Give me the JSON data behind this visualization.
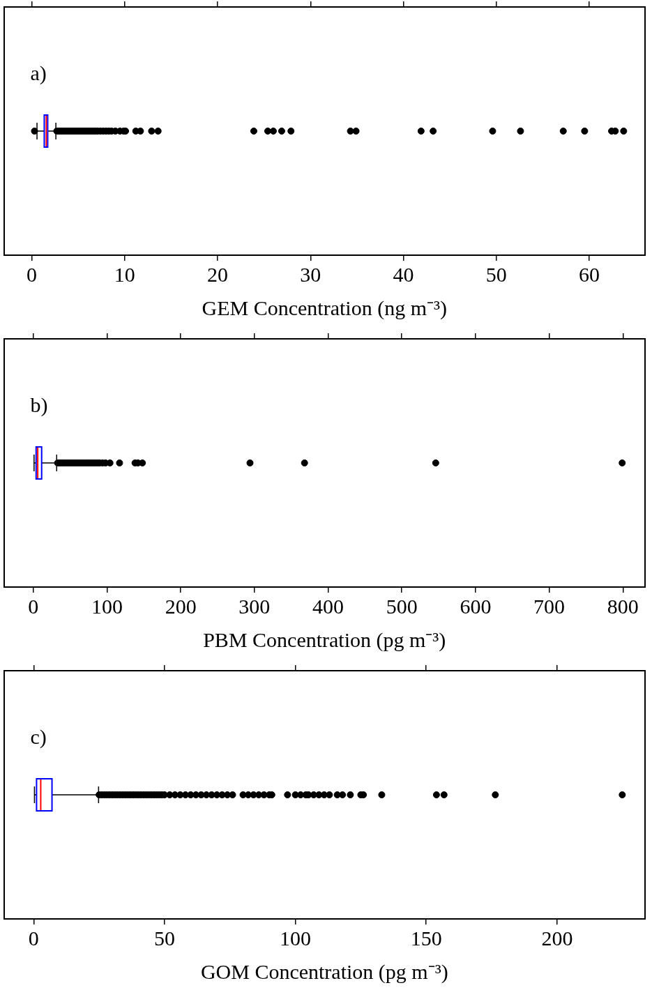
{
  "chart_data": [
    {
      "type": "box",
      "orientation": "horizontal",
      "xlabel": "GEM Concentration (ng m⁻³)",
      "categories": [
        null
      ],
      "xlim": [
        -3,
        66
      ],
      "xticks": [
        0,
        10,
        20,
        30,
        40,
        50,
        60
      ],
      "tick_labels": "x",
      "grid": false,
      "legend": false,
      "annotations": [
        "a)"
      ],
      "boxes": [
        {
          "low": 0.57,
          "q1": 1.35,
          "median": 1.57,
          "q3": 1.72,
          "high": 2.6,
          "outliers": [
            0.3,
            2.7,
            2.9,
            3.1,
            3.3,
            3.5,
            3.7,
            3.9,
            4.1,
            4.3,
            4.5,
            4.7,
            4.9,
            5.1,
            5.3,
            5.5,
            5.7,
            5.9,
            6.1,
            6.3,
            6.5,
            6.7,
            6.9,
            7.1,
            7.4,
            7.7,
            8.0,
            8.3,
            8.6,
            9.0,
            9.5,
            9.9,
            10.1,
            11.2,
            11.7,
            12.9,
            13.6,
            23.9,
            25.4,
            26.0,
            26.9,
            27.9,
            34.3,
            34.9,
            41.9,
            43.2,
            49.6,
            52.6,
            57.2,
            59.5,
            62.4,
            62.8,
            63.7
          ]
        }
      ]
    },
    {
      "type": "box",
      "orientation": "horizontal",
      "xlabel": "PBM Concentration (pg m⁻³)",
      "categories": [
        null
      ],
      "xlim": [
        -40,
        830
      ],
      "xticks": [
        0,
        100,
        200,
        300,
        400,
        500,
        600,
        700,
        800
      ],
      "tick_labels": "x",
      "grid": false,
      "legend": false,
      "annotations": [
        "b)"
      ],
      "boxes": [
        {
          "low": 1,
          "q1": 3.8,
          "median": 6,
          "q3": 11.3,
          "high": 31.7,
          "outliers": [
            33,
            36,
            39,
            42,
            45,
            48,
            51,
            54,
            57,
            60,
            63,
            66,
            69,
            72,
            75,
            78,
            81,
            84,
            87,
            90,
            94,
            98,
            104,
            117,
            138,
            142,
            148,
            294,
            368,
            546,
            799
          ]
        }
      ]
    },
    {
      "type": "box",
      "orientation": "horizontal",
      "xlabel": "GOM Concentration (pg m⁻³)",
      "categories": [
        null
      ],
      "xlim": [
        -11.4,
        233.6
      ],
      "xticks": [
        0,
        50,
        100,
        150,
        200
      ],
      "tick_labels": "x",
      "grid": false,
      "legend": false,
      "annotations": [
        "c)"
      ],
      "boxes": [
        {
          "low": 0.3,
          "q1": 1.1,
          "median": 2.7,
          "q3": 7.0,
          "high": 24.8,
          "outliers": [
            25,
            26,
            27,
            28,
            29,
            30,
            31,
            32,
            33,
            34,
            35,
            36,
            37,
            38,
            39,
            40,
            41,
            42,
            43,
            44,
            45,
            46,
            47,
            48,
            49,
            50,
            52,
            54,
            56,
            58,
            60,
            62,
            64,
            66,
            68,
            70,
            72,
            74,
            76,
            80,
            82,
            84,
            86,
            88,
            90,
            91,
            97,
            100,
            102,
            104,
            105,
            107,
            109,
            111,
            113,
            116,
            118,
            121,
            125,
            126,
            133,
            153.9,
            156.8,
            176.4,
            224.9
          ]
        }
      ]
    }
  ]
}
